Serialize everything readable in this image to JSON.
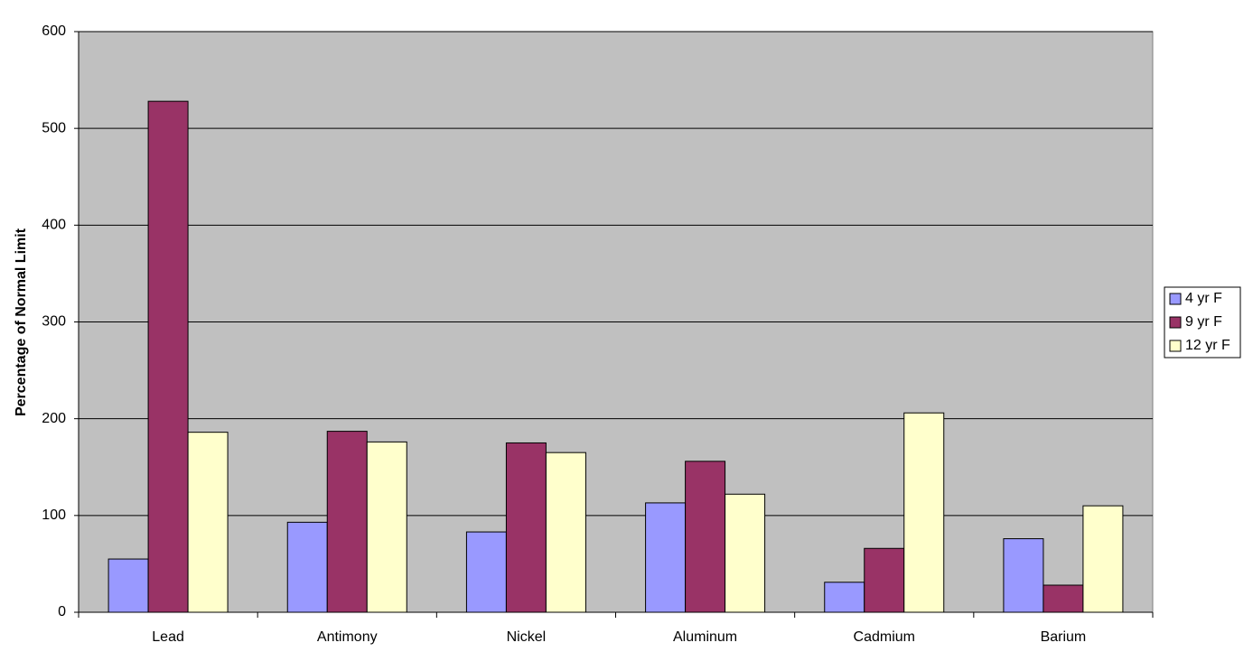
{
  "chart_data": {
    "type": "bar",
    "y_label": "Percentage of Normal Limit",
    "categories": [
      "Lead",
      "Antimony",
      "Nickel",
      "Aluminum",
      "Cadmium",
      "Barium"
    ],
    "series": [
      {
        "name": "4 yr F",
        "color": "#9999ff",
        "values": [
          55,
          93,
          83,
          113,
          31,
          76
        ]
      },
      {
        "name": "9 yr F",
        "color": "#993366",
        "values": [
          528,
          187,
          175,
          156,
          66,
          28
        ]
      },
      {
        "name": "12 yr F",
        "color": "#ffffcc",
        "values": [
          186,
          176,
          165,
          122,
          206,
          110
        ]
      }
    ],
    "ylim": [
      0,
      600
    ],
    "yticks": [
      0,
      100,
      200,
      300,
      400,
      500,
      600
    ],
    "grid": true,
    "legend": "right",
    "plot_background": "#c0c0c0"
  }
}
